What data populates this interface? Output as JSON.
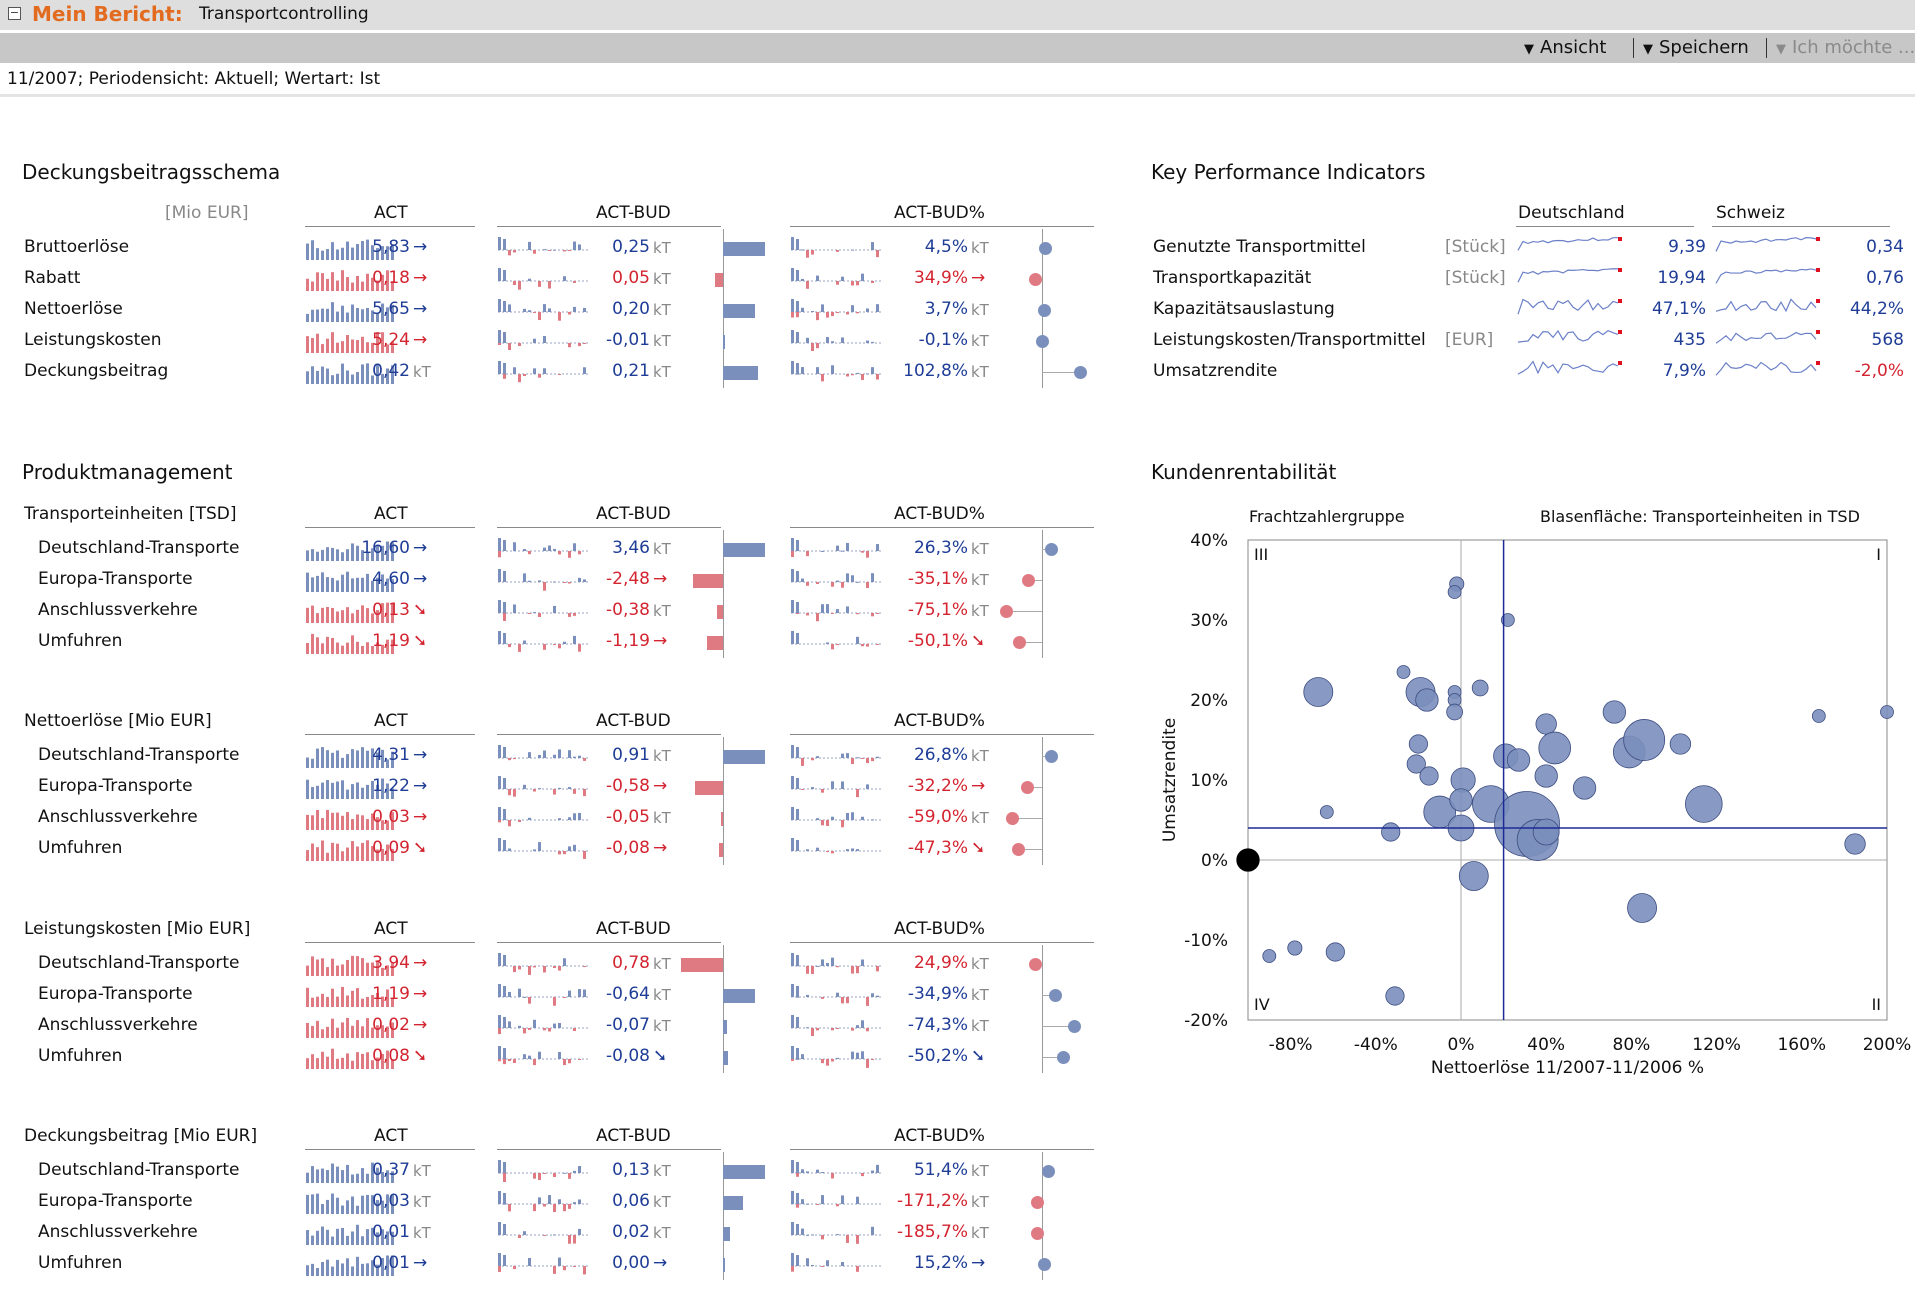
{
  "header": {
    "title": "Mein Bericht:",
    "subtitle": "Transportcontrolling"
  },
  "toolbar": {
    "view": "Ansicht",
    "save": "Speichern",
    "want": "Ich möchte ..."
  },
  "filter": "11/2007; Periodensicht: Aktuell; Wertart: Ist",
  "colors": {
    "pos": "#1f3d97",
    "neg": "#d32430",
    "bar_pos": "#7b8fbd",
    "bar_neg": "#e07a82"
  },
  "columns": {
    "act": "ACT",
    "actbud": "ACT-BUD",
    "actbudp": "ACT-BUD%"
  },
  "db": {
    "title": "Deckungsbeitragsschema",
    "unit": "[Mio EUR]",
    "rows": [
      {
        "label": "Bruttoerlöse",
        "act": "5,83",
        "act_arrow": "→",
        "act_sign": "pos",
        "bud": "0,25",
        "bud_suffix": "kT",
        "bud_sign": "pos",
        "bud_bar": 0.35,
        "pct": "4,5%",
        "pct_suffix": "kT",
        "pct_sign": "pos",
        "pct_dot": 0.03
      },
      {
        "label": "Rabatt",
        "act": "0,18",
        "act_arrow": "→",
        "act_sign": "neg",
        "bud": "0,05",
        "bud_suffix": "kT",
        "bud_sign": "neg",
        "bud_bar": -0.07,
        "pct": "34,9%",
        "pct_arrow": "→",
        "pct_sign": "neg",
        "pct_dot": -0.05
      },
      {
        "label": "Nettoerlöse",
        "act": "5,65",
        "act_arrow": "→",
        "act_sign": "pos",
        "bud": "0,20",
        "bud_suffix": "kT",
        "bud_sign": "pos",
        "bud_bar": 0.27,
        "pct": "3,7%",
        "pct_suffix": "kT",
        "pct_sign": "pos",
        "pct_dot": 0.02
      },
      {
        "label": "Leistungskosten",
        "act": "5,24",
        "act_arrow": "→",
        "act_sign": "neg",
        "bud": "-0,01",
        "bud_suffix": "kT",
        "bud_sign": "pos",
        "bud_bar": 0.01,
        "pct": "-0,1%",
        "pct_suffix": "kT",
        "pct_sign": "pos",
        "pct_dot": 0.01
      },
      {
        "label": "Deckungsbeitrag",
        "act": "0,42",
        "act_suffix": "kT",
        "act_sign": "pos",
        "bud": "0,21",
        "bud_suffix": "kT",
        "bud_sign": "pos",
        "bud_bar": 0.29,
        "pct": "102,8%",
        "pct_suffix": "kT",
        "pct_sign": "pos",
        "pct_dot": 0.3
      }
    ]
  },
  "pm": {
    "title": "Produktmanagement",
    "groups": [
      {
        "header": "Transporteinheiten [TSD]",
        "rows": [
          {
            "label": "Deutschland-Transporte",
            "act": "16,60",
            "act_arrow": "→",
            "act_sign": "pos",
            "bud": "3,46",
            "bud_suffix": "kT",
            "bud_sign": "pos",
            "bud_bar": 0.35,
            "pct": "26,3%",
            "pct_suffix": "kT",
            "pct_sign": "pos",
            "pct_dot": 0.08
          },
          {
            "label": "Europa-Transporte",
            "act": "4,60",
            "act_arrow": "→",
            "act_sign": "pos",
            "bud": "-2,48",
            "bud_arrow": "→",
            "bud_sign": "neg",
            "bud_bar": -0.25,
            "pct": "-35,1%",
            "pct_suffix": "kT",
            "pct_sign": "neg",
            "pct_dot": -0.1
          },
          {
            "label": "Anschlussverkehre",
            "act": "0,13",
            "act_arrow": "➘",
            "act_sign": "neg",
            "bud": "-0,38",
            "bud_suffix": "kT",
            "bud_sign": "neg",
            "bud_bar": -0.05,
            "pct": "-75,1%",
            "pct_suffix": "kT",
            "pct_sign": "neg",
            "pct_dot": -0.27
          },
          {
            "label": "Umfuhren",
            "act": "1,19",
            "act_arrow": "➘",
            "act_sign": "neg",
            "bud": "-1,19",
            "bud_arrow": "→",
            "bud_sign": "neg",
            "bud_bar": -0.13,
            "pct": "-50,1%",
            "pct_arrow": "➘",
            "pct_sign": "neg",
            "pct_dot": -0.17
          }
        ]
      },
      {
        "header": "Nettoerlöse [Mio EUR]",
        "rows": [
          {
            "label": "Deutschland-Transporte",
            "act": "4,31",
            "act_arrow": "→",
            "act_sign": "pos",
            "bud": "0,91",
            "bud_suffix": "kT",
            "bud_sign": "pos",
            "bud_bar": 0.35,
            "pct": "26,8%",
            "pct_suffix": "kT",
            "pct_sign": "pos",
            "pct_dot": 0.08
          },
          {
            "label": "Europa-Transporte",
            "act": "1,22",
            "act_arrow": "→",
            "act_sign": "pos",
            "bud": "-0,58",
            "bud_arrow": "→",
            "bud_sign": "neg",
            "bud_bar": -0.23,
            "pct": "-32,2%",
            "pct_arrow": "→",
            "pct_sign": "neg",
            "pct_dot": -0.11
          },
          {
            "label": "Anschlussverkehre",
            "act": "0,03",
            "act_arrow": "→",
            "act_sign": "neg",
            "bud": "-0,05",
            "bud_suffix": "kT",
            "bud_sign": "neg",
            "bud_bar": -0.02,
            "pct": "-59,0%",
            "pct_suffix": "kT",
            "pct_sign": "neg",
            "pct_dot": -0.22
          },
          {
            "label": "Umfuhren",
            "act": "0,09",
            "act_arrow": "➘",
            "act_sign": "neg",
            "bud": "-0,08",
            "bud_arrow": "→",
            "bud_sign": "neg",
            "bud_bar": -0.03,
            "pct": "-47,3%",
            "pct_arrow": "➘",
            "pct_sign": "neg",
            "pct_dot": -0.18
          }
        ]
      },
      {
        "header": "Leistungskosten [Mio EUR]",
        "rows": [
          {
            "label": "Deutschland-Transporte",
            "act": "3,94",
            "act_arrow": "→",
            "act_sign": "neg",
            "bud": "0,78",
            "bud_suffix": "kT",
            "bud_sign": "neg",
            "bud_bar": -0.35,
            "pct": "24,9%",
            "pct_suffix": "kT",
            "pct_sign": "neg",
            "pct_dot": -0.05
          },
          {
            "label": "Europa-Transporte",
            "act": "1,19",
            "act_arrow": "→",
            "act_sign": "neg",
            "bud": "-0,64",
            "bud_suffix": "kT",
            "bud_sign": "pos",
            "bud_bar": 0.27,
            "pct": "-34,9%",
            "pct_suffix": "kT",
            "pct_sign": "pos",
            "pct_dot": 0.11
          },
          {
            "label": "Anschlussverkehre",
            "act": "0,02",
            "act_arrow": "→",
            "act_sign": "neg",
            "bud": "-0,07",
            "bud_suffix": "kT",
            "bud_sign": "pos",
            "bud_bar": 0.03,
            "pct": "-74,3%",
            "pct_suffix": "kT",
            "pct_sign": "pos",
            "pct_dot": 0.25
          },
          {
            "label": "Umfuhren",
            "act": "0,08",
            "act_arrow": "➘",
            "act_sign": "neg",
            "bud": "-0,08",
            "bud_arrow": "➘",
            "bud_sign": "pos",
            "bud_bar": 0.04,
            "pct": "-50,2%",
            "pct_arrow": "➘",
            "pct_sign": "pos",
            "pct_dot": 0.17
          }
        ]
      },
      {
        "header": "Deckungsbeitrag [Mio EUR]",
        "rows": [
          {
            "label": "Deutschland-Transporte",
            "act": "0,37",
            "act_suffix": "kT",
            "act_sign": "pos",
            "bud": "0,13",
            "bud_suffix": "kT",
            "bud_sign": "pos",
            "bud_bar": 0.35,
            "pct": "51,4%",
            "pct_suffix": "kT",
            "pct_sign": "pos",
            "pct_dot": 0.05
          },
          {
            "label": "Europa-Transporte",
            "act": "0,03",
            "act_suffix": "kT",
            "act_sign": "pos",
            "bud": "0,06",
            "bud_suffix": "kT",
            "bud_sign": "pos",
            "bud_bar": 0.17,
            "pct": "-171,2%",
            "pct_suffix": "kT",
            "pct_sign": "neg",
            "pct_dot": -0.03
          },
          {
            "label": "Anschlussverkehre",
            "act": "0,01",
            "act_suffix": "kT",
            "act_sign": "pos",
            "bud": "0,02",
            "bud_suffix": "kT",
            "bud_sign": "pos",
            "bud_bar": 0.06,
            "pct": "-185,7%",
            "pct_suffix": "kT",
            "pct_sign": "neg",
            "pct_dot": -0.03
          },
          {
            "label": "Umfuhren",
            "act": "0,01",
            "act_arrow": "→",
            "act_sign": "pos",
            "bud": "0,00",
            "bud_arrow": "→",
            "bud_sign": "pos",
            "bud_bar": 0.0,
            "pct": "15,2%",
            "pct_arrow": "→",
            "pct_sign": "pos",
            "pct_dot": 0.02
          }
        ]
      }
    ]
  },
  "kpi": {
    "title": "Key Performance Indicators",
    "col_de": "Deutschland",
    "col_ch": "Schweiz",
    "rows": [
      {
        "label": "Genutzte Transportmittel",
        "unit": "[Stück]",
        "de": "9,39",
        "de_sign": "pos",
        "ch": "0,34",
        "ch_sign": "pos"
      },
      {
        "label": "Transportkapazität",
        "unit": "[Stück]",
        "de": "19,94",
        "de_sign": "pos",
        "ch": "0,76",
        "ch_sign": "pos"
      },
      {
        "label": "Kapazitätsauslastung",
        "unit": "",
        "de": "47,1%",
        "de_sign": "pos",
        "ch": "44,2%",
        "ch_sign": "pos"
      },
      {
        "label": "Leistungskosten/Transportmittel",
        "unit": "[EUR]",
        "de": "435",
        "de_sign": "pos",
        "ch": "568",
        "ch_sign": "pos"
      },
      {
        "label": "Umsatzrendite",
        "unit": "",
        "de": "7,9%",
        "de_sign": "pos",
        "ch": "-2,0%",
        "ch_sign": "neg"
      }
    ]
  },
  "customer": {
    "title": "Kundenrentabilität",
    "group_label": "Frachtzahlergruppe",
    "bubble_label": "Blasenfläche:  Transporteinheiten in TSD",
    "q1": "I",
    "q2": "II",
    "q3": "III",
    "q4": "IV"
  },
  "chart_data": {
    "type": "scatter",
    "title": "",
    "xlabel": "Nettoerlöse 11/2007-11/2006 %",
    "ylabel": "Umsatzrendite",
    "xlim": [
      -100,
      200
    ],
    "ylim": [
      -20,
      40
    ],
    "x_ticks": [
      "-80%",
      "-40%",
      "0%",
      "40%",
      "80%",
      "120%",
      "160%",
      "200%"
    ],
    "x_tick_values": [
      -80,
      -40,
      0,
      40,
      80,
      120,
      160,
      200
    ],
    "y_ticks": [
      "40%",
      "30%",
      "20%",
      "10%",
      "0%",
      "-10%",
      "-20%"
    ],
    "y_tick_values": [
      40,
      30,
      20,
      10,
      0,
      -10,
      -20
    ],
    "ref_x": 20,
    "ref_y": 4,
    "points": [
      {
        "x": -100,
        "y": 0,
        "size": 3,
        "highlight": true
      },
      {
        "x": -67,
        "y": 21,
        "size": 5
      },
      {
        "x": -63,
        "y": 6,
        "size": 1
      },
      {
        "x": -90,
        "y": -12,
        "size": 1
      },
      {
        "x": -78,
        "y": -11,
        "size": 1.2
      },
      {
        "x": -59,
        "y": -11.5,
        "size": 2
      },
      {
        "x": -33,
        "y": 3.5,
        "size": 2
      },
      {
        "x": -31,
        "y": -17,
        "size": 2
      },
      {
        "x": -27,
        "y": 23.5,
        "size": 1
      },
      {
        "x": -19,
        "y": 21,
        "size": 5
      },
      {
        "x": -16,
        "y": 20,
        "size": 3
      },
      {
        "x": -20,
        "y": 14.5,
        "size": 2
      },
      {
        "x": -21,
        "y": 12,
        "size": 2
      },
      {
        "x": -15,
        "y": 10.5,
        "size": 2
      },
      {
        "x": -10,
        "y": 6,
        "size": 6
      },
      {
        "x": -2,
        "y": 34.5,
        "size": 1.2
      },
      {
        "x": -3,
        "y": 33.5,
        "size": 1
      },
      {
        "x": -3,
        "y": 21,
        "size": 1
      },
      {
        "x": -3,
        "y": 20,
        "size": 1
      },
      {
        "x": -3,
        "y": 18.5,
        "size": 1.5
      },
      {
        "x": 9,
        "y": 21.5,
        "size": 1.5
      },
      {
        "x": 1,
        "y": 10,
        "size": 3.5
      },
      {
        "x": 0,
        "y": 7.5,
        "size": 3
      },
      {
        "x": 0,
        "y": 4,
        "size": 4
      },
      {
        "x": 6,
        "y": -2,
        "size": 5
      },
      {
        "x": 14,
        "y": 7,
        "size": 8
      },
      {
        "x": 21,
        "y": 13,
        "size": 3.5
      },
      {
        "x": 27,
        "y": 12.5,
        "size": 3
      },
      {
        "x": 31,
        "y": 4.5,
        "size": 25
      },
      {
        "x": 36,
        "y": 2.5,
        "size": 10
      },
      {
        "x": 40,
        "y": 3.5,
        "size": 4
      },
      {
        "x": 40,
        "y": 10.5,
        "size": 3
      },
      {
        "x": 40,
        "y": 17,
        "size": 2.5
      },
      {
        "x": 44,
        "y": 14,
        "size": 6
      },
      {
        "x": 22,
        "y": 30,
        "size": 1
      },
      {
        "x": 58,
        "y": 9,
        "size": 3
      },
      {
        "x": 72,
        "y": 18.5,
        "size": 3
      },
      {
        "x": 79,
        "y": 13.5,
        "size": 6
      },
      {
        "x": 86,
        "y": 15,
        "size": 10
      },
      {
        "x": 103,
        "y": 14.5,
        "size": 2.5
      },
      {
        "x": 114,
        "y": 7,
        "size": 8
      },
      {
        "x": 85,
        "y": -6,
        "size": 5
      },
      {
        "x": 168,
        "y": 18,
        "size": 1
      },
      {
        "x": 185,
        "y": 2,
        "size": 2.5
      },
      {
        "x": 200,
        "y": 18.5,
        "size": 1
      }
    ]
  }
}
